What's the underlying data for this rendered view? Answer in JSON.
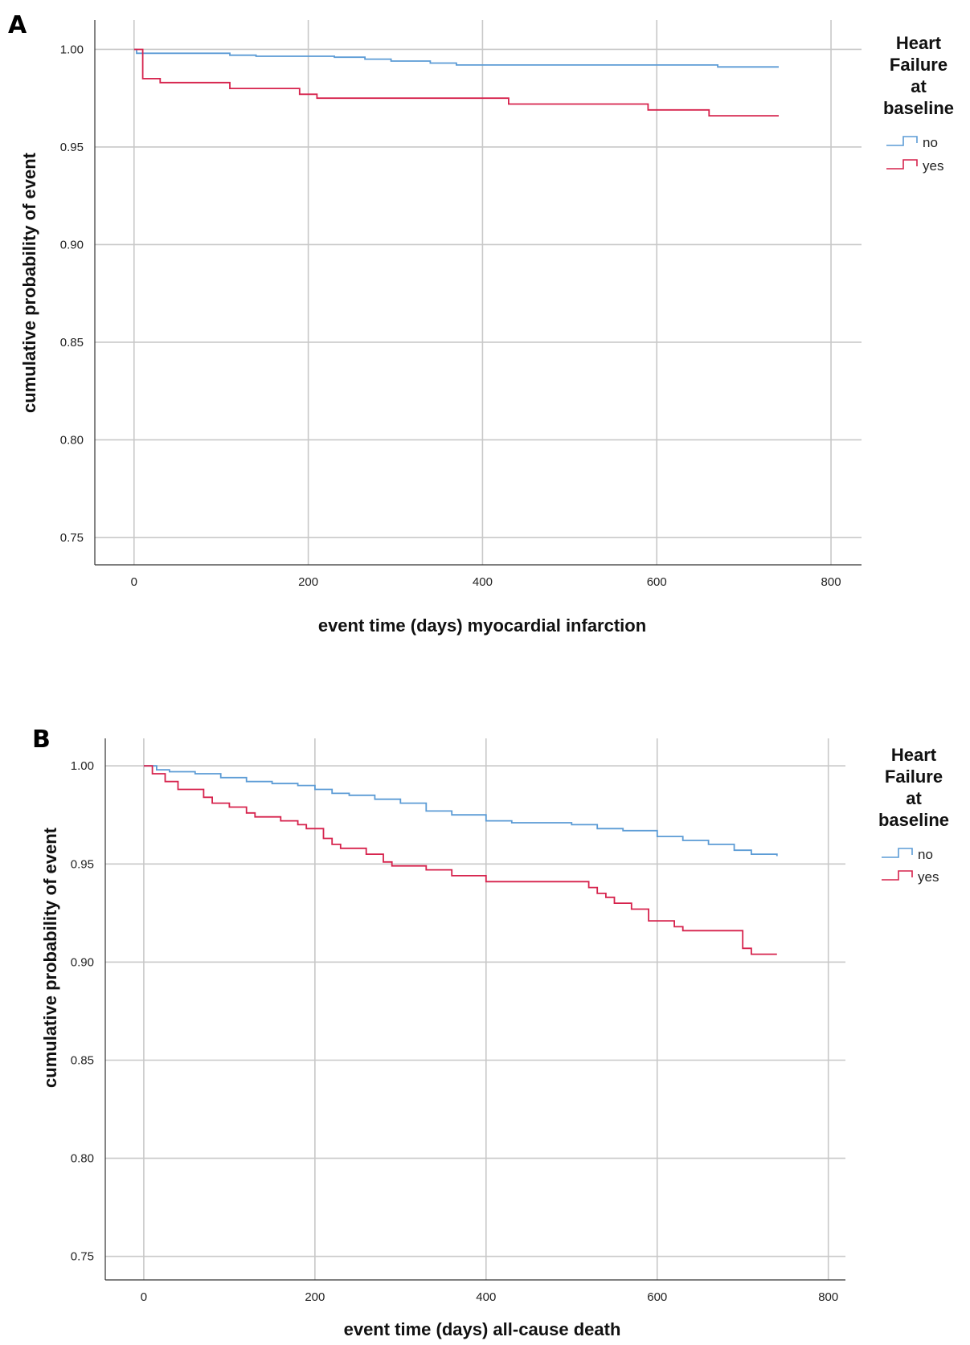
{
  "panels": [
    {
      "letter": "A",
      "chart_type": "step-line",
      "xlabel": "event time (days) myocardial infarction",
      "ylabel": "cumulative probability of event",
      "legend_title": [
        "Heart",
        "Failure",
        "at",
        "baseline"
      ],
      "legend_position": "right",
      "grid": true,
      "xlim": [
        -45,
        835
      ],
      "ylim": [
        0.736,
        1.015
      ],
      "xticks": [
        "0",
        "200",
        "400",
        "600",
        "800"
      ],
      "xtick_values": [
        0,
        200,
        400,
        600,
        800
      ],
      "yticks": [
        "0.75",
        "0.80",
        "0.85",
        "0.90",
        "0.95",
        "1.00"
      ],
      "ytick_values": [
        0.75,
        0.8,
        0.85,
        0.9,
        0.95,
        1.0
      ]
    },
    {
      "letter": "B",
      "chart_type": "step-line",
      "xlabel": "event time (days) all-cause death",
      "ylabel": "cumulative probability of event",
      "legend_title": [
        "Heart",
        "Failure",
        "at",
        "baseline"
      ],
      "legend_position": "right",
      "grid": true,
      "xlim": [
        -45,
        820
      ],
      "ylim": [
        0.738,
        1.014
      ],
      "xticks": [
        "0",
        "200",
        "400",
        "600",
        "800"
      ],
      "xtick_values": [
        0,
        200,
        400,
        600,
        800
      ],
      "yticks": [
        "0.75",
        "0.80",
        "0.85",
        "0.90",
        "0.95",
        "1.00"
      ],
      "ytick_values": [
        0.75,
        0.8,
        0.85,
        0.9,
        0.95,
        1.0
      ]
    }
  ],
  "chart_data": [
    {
      "type": "line",
      "xlabel": "event time (days) myocardial infarction",
      "ylabel": "cumulative probability of event",
      "xlim": [
        -45,
        835
      ],
      "ylim": [
        0.736,
        1.015
      ],
      "series": [
        {
          "name": "no",
          "color": "#5b9bd5",
          "points": [
            [
              0,
              1.0
            ],
            [
              3,
              0.998
            ],
            [
              60,
              0.998
            ],
            [
              110,
              0.997
            ],
            [
              140,
              0.9965
            ],
            [
              230,
              0.996
            ],
            [
              265,
              0.995
            ],
            [
              295,
              0.994
            ],
            [
              340,
              0.993
            ],
            [
              370,
              0.992
            ],
            [
              420,
              0.992
            ],
            [
              540,
              0.992
            ],
            [
              670,
              0.991
            ],
            [
              740,
              0.991
            ]
          ]
        },
        {
          "name": "yes",
          "color": "#d6224c",
          "points": [
            [
              0,
              1.0
            ],
            [
              10,
              0.985
            ],
            [
              30,
              0.983
            ],
            [
              110,
              0.98
            ],
            [
              190,
              0.977
            ],
            [
              210,
              0.975
            ],
            [
              320,
              0.975
            ],
            [
              430,
              0.972
            ],
            [
              590,
              0.969
            ],
            [
              660,
              0.966
            ],
            [
              740,
              0.966
            ]
          ]
        }
      ]
    },
    {
      "type": "line",
      "xlabel": "event time (days) all-cause death",
      "ylabel": "cumulative probability of event",
      "xlim": [
        -45,
        820
      ],
      "ylim": [
        0.738,
        1.014
      ],
      "series": [
        {
          "name": "no",
          "color": "#5b9bd5",
          "points": [
            [
              0,
              1.0
            ],
            [
              15,
              0.998
            ],
            [
              30,
              0.997
            ],
            [
              60,
              0.996
            ],
            [
              90,
              0.994
            ],
            [
              120,
              0.992
            ],
            [
              150,
              0.991
            ],
            [
              180,
              0.99
            ],
            [
              200,
              0.988
            ],
            [
              220,
              0.986
            ],
            [
              240,
              0.985
            ],
            [
              270,
              0.983
            ],
            [
              300,
              0.981
            ],
            [
              330,
              0.977
            ],
            [
              360,
              0.975
            ],
            [
              400,
              0.972
            ],
            [
              430,
              0.971
            ],
            [
              470,
              0.971
            ],
            [
              500,
              0.97
            ],
            [
              530,
              0.968
            ],
            [
              560,
              0.967
            ],
            [
              600,
              0.964
            ],
            [
              630,
              0.962
            ],
            [
              660,
              0.96
            ],
            [
              690,
              0.957
            ],
            [
              710,
              0.955
            ],
            [
              740,
              0.954
            ]
          ]
        },
        {
          "name": "yes",
          "color": "#d6224c",
          "points": [
            [
              0,
              1.0
            ],
            [
              10,
              0.996
            ],
            [
              25,
              0.992
            ],
            [
              40,
              0.988
            ],
            [
              70,
              0.984
            ],
            [
              80,
              0.981
            ],
            [
              100,
              0.979
            ],
            [
              120,
              0.976
            ],
            [
              130,
              0.974
            ],
            [
              160,
              0.972
            ],
            [
              180,
              0.97
            ],
            [
              190,
              0.968
            ],
            [
              210,
              0.963
            ],
            [
              220,
              0.96
            ],
            [
              230,
              0.958
            ],
            [
              260,
              0.955
            ],
            [
              280,
              0.951
            ],
            [
              290,
              0.949
            ],
            [
              330,
              0.947
            ],
            [
              360,
              0.944
            ],
            [
              400,
              0.941
            ],
            [
              430,
              0.941
            ],
            [
              520,
              0.938
            ],
            [
              530,
              0.935
            ],
            [
              540,
              0.933
            ],
            [
              550,
              0.93
            ],
            [
              570,
              0.927
            ],
            [
              590,
              0.921
            ],
            [
              620,
              0.918
            ],
            [
              630,
              0.916
            ],
            [
              700,
              0.907
            ],
            [
              710,
              0.904
            ],
            [
              740,
              0.904
            ]
          ]
        }
      ]
    }
  ]
}
